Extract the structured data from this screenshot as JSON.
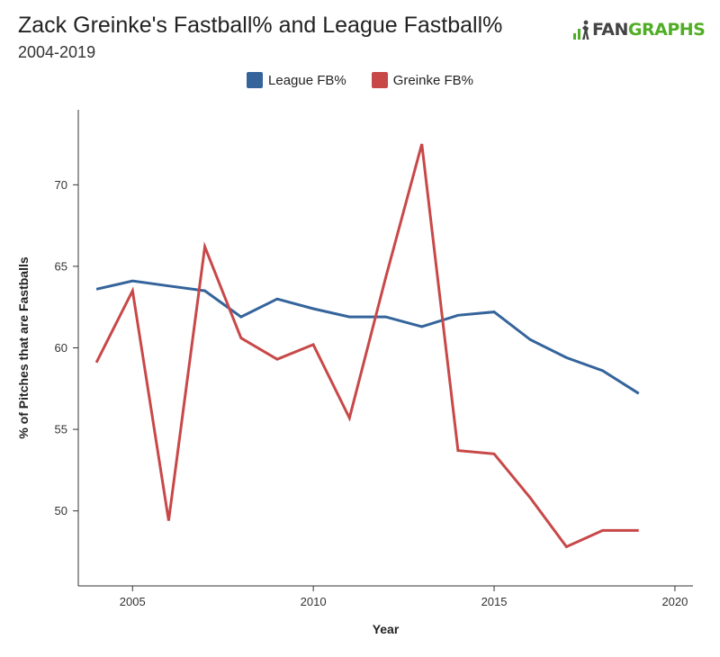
{
  "brand": {
    "part1": "FAN",
    "part2": "GRAPHS",
    "icon": "fangraphs-logo-icon",
    "accent": "#50ae26"
  },
  "chart_data": {
    "type": "line",
    "title": "Zack Greinke's Fastball% and League Fastball%",
    "subtitle": "2004-2019",
    "xlabel": "Year",
    "ylabel": "% of Pitches that are Fastballs",
    "xlim": [
      2003.5,
      2020.5
    ],
    "ylim": [
      45.4,
      74.6
    ],
    "xticks": [
      2005,
      2010,
      2015,
      2020
    ],
    "yticks": [
      50,
      55,
      60,
      65,
      70
    ],
    "grid": false,
    "legend_position": "top-center",
    "x": [
      2004,
      2005,
      2006,
      2007,
      2008,
      2009,
      2010,
      2011,
      2012,
      2013,
      2014,
      2015,
      2016,
      2017,
      2018,
      2019
    ],
    "series": [
      {
        "name": "League FB%",
        "color": "#34649b",
        "values": [
          63.6,
          64.1,
          63.8,
          63.5,
          61.9,
          63.0,
          62.4,
          61.9,
          61.9,
          61.3,
          62.0,
          62.2,
          60.5,
          59.4,
          58.6,
          57.2
        ]
      },
      {
        "name": "Greinke FB%",
        "color": "#c84848",
        "values": [
          59.1,
          63.5,
          49.4,
          66.2,
          60.6,
          59.3,
          60.2,
          55.7,
          64.3,
          72.5,
          53.7,
          53.5,
          50.8,
          47.8,
          48.8,
          48.8
        ]
      }
    ]
  }
}
